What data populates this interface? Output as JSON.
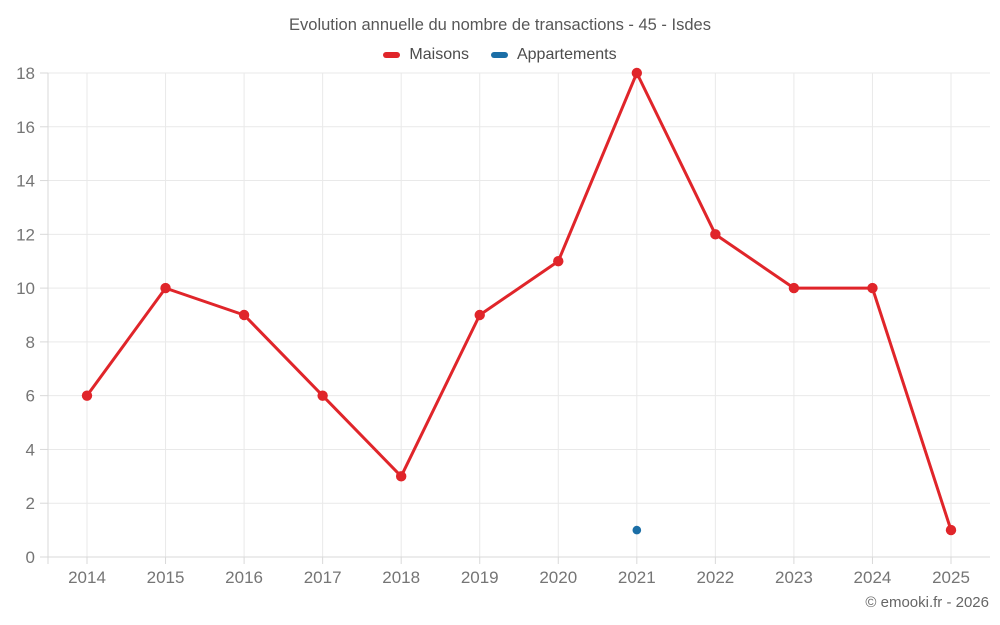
{
  "header": {
    "title": "Evolution annuelle du nombre de transactions - 45 - Isdes"
  },
  "footer": {
    "credit": "© emooki.fr - 2026"
  },
  "chart_data": {
    "type": "line",
    "title": "Evolution annuelle du nombre de transactions - 45 - Isdes",
    "categories": [
      "2014",
      "2015",
      "2016",
      "2017",
      "2018",
      "2019",
      "2020",
      "2021",
      "2022",
      "2023",
      "2024",
      "2025"
    ],
    "series": [
      {
        "name": "Maisons",
        "color": "#e0252a",
        "values": [
          6,
          10,
          9,
          6,
          3,
          9,
          11,
          18,
          12,
          10,
          10,
          1
        ]
      },
      {
        "name": "Appartements",
        "color": "#1b6ea6",
        "values": [
          null,
          null,
          null,
          null,
          null,
          null,
          null,
          1,
          null,
          null,
          null,
          null
        ]
      }
    ],
    "xlabel": "",
    "ylabel": "",
    "ylim": [
      0,
      18
    ],
    "ytick_step": 2,
    "grid": true,
    "legend_position": "top",
    "axis_text_color": "#757575",
    "grid_color": "#e9e9e9",
    "axis_line_color": "#d9d9d9"
  }
}
